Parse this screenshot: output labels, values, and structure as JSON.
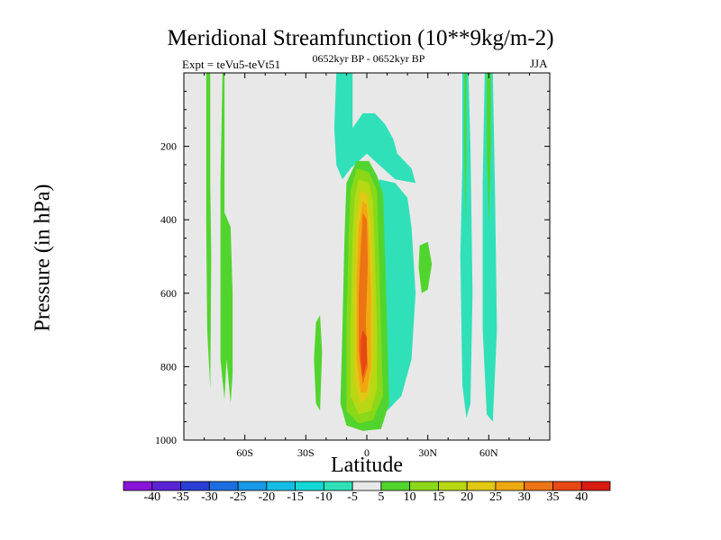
{
  "chart_data": {
    "type": "heatmap",
    "title": "Meridional Streamfunction (10**9kg/m-2)",
    "subtitle": "0652kyr BP - 0652kyr BP",
    "left_annotation": "Expt = teVu5-teVt51",
    "right_annotation": "JJA",
    "xlabel": "Latitude",
    "ylabel": "Pressure (in hPa)",
    "x_range": [
      -90,
      90
    ],
    "y_range": [
      0,
      1000
    ],
    "y_inverted": true,
    "x_ticks": [
      {
        "value": -60,
        "label": "60S"
      },
      {
        "value": -30,
        "label": "30S"
      },
      {
        "value": 0,
        "label": "0"
      },
      {
        "value": 30,
        "label": "30N"
      },
      {
        "value": 60,
        "label": "60N"
      }
    ],
    "y_ticks": [
      {
        "value": 200,
        "label": "200"
      },
      {
        "value": 400,
        "label": "400"
      },
      {
        "value": 600,
        "label": "600"
      },
      {
        "value": 800,
        "label": "800"
      },
      {
        "value": 1000,
        "label": "1000"
      }
    ],
    "colorbar": {
      "levels": [
        "-40",
        "-35",
        "-30",
        "-25",
        "-20",
        "-15",
        "-10",
        "-5",
        "5",
        "10",
        "15",
        "20",
        "25",
        "30",
        "35",
        "40"
      ],
      "colors": [
        "#8a14d8",
        "#5a22d6",
        "#2a3fd6",
        "#1c6ee0",
        "#1898e8",
        "#14bde6",
        "#12d8d8",
        "#30e0b8",
        "#e8e8e8",
        "#52d42e",
        "#8ad818",
        "#b8d814",
        "#e0c814",
        "#f0a810",
        "#ec7414",
        "#e84814",
        "#d81a10"
      ]
    },
    "regions": [
      {
        "name": "green-strip-a",
        "level": "5 to 10",
        "lat": [
          -79,
          -76
        ],
        "p": [
          0,
          860
        ]
      },
      {
        "name": "green-strip-b",
        "level": "5 to 10",
        "lat": [
          -72,
          -66
        ],
        "p": [
          0,
          900
        ]
      },
      {
        "name": "teal-upper-band",
        "level": "-10 to -5",
        "lat": [
          -15,
          22
        ],
        "p": [
          0,
          290
        ]
      },
      {
        "name": "teal-lower-tongue",
        "level": "-10 to -5",
        "lat": [
          5,
          25
        ],
        "p": [
          290,
          920
        ]
      },
      {
        "name": "green-blob-mid",
        "level": "5 to 10",
        "lat": [
          -26,
          -22
        ],
        "p": [
          660,
          920
        ]
      },
      {
        "name": "green-patch-30n",
        "level": "5 to 10",
        "lat": [
          25,
          33
        ],
        "p": [
          460,
          600
        ]
      },
      {
        "name": "warm-core",
        "level": "35 to 40",
        "lat": [
          -5,
          0
        ],
        "p": [
          660,
          830
        ]
      },
      {
        "name": "green-core-surround",
        "level": "5 to 10",
        "lat": [
          -13,
          10
        ],
        "p": [
          240,
          970
        ]
      },
      {
        "name": "teal-col-45n",
        "level": "-10 to -5",
        "lat": [
          45,
          52
        ],
        "p": [
          0,
          940
        ]
      },
      {
        "name": "teal-col-60n",
        "level": "-10 to -5",
        "lat": [
          57,
          64
        ],
        "p": [
          0,
          950
        ]
      }
    ]
  }
}
